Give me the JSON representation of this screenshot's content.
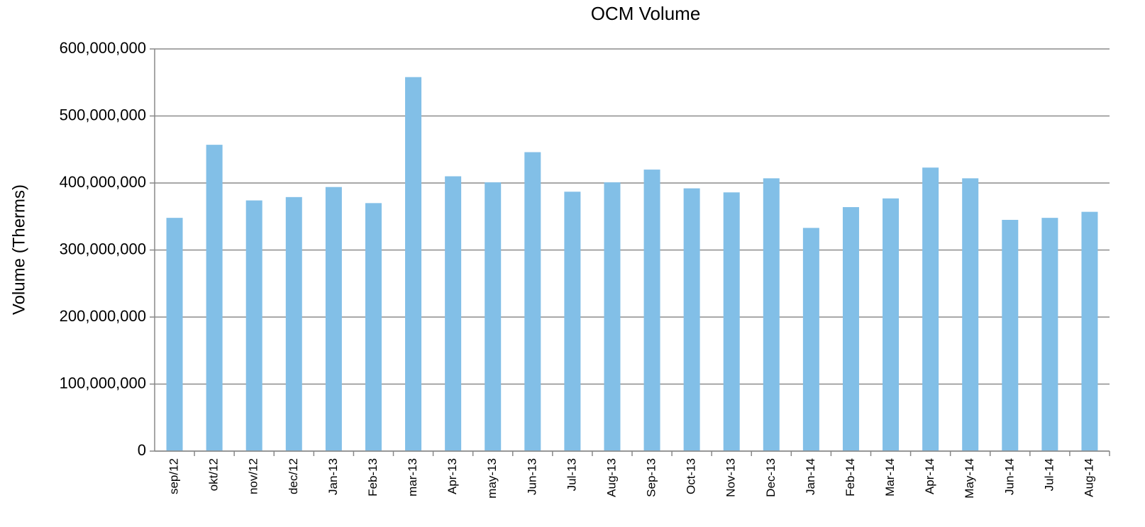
{
  "chart_data": {
    "type": "bar",
    "title": "OCM Volume",
    "y_label": "Volume (Therms)",
    "categories": [
      "sep/12",
      "okt/12",
      "nov/12",
      "dec/12",
      "Jan-13",
      "Feb-13",
      "mar-13",
      "Apr-13",
      "may-13",
      "Jun-13",
      "Jul-13",
      "Aug-13",
      "Sep-13",
      "Oct-13",
      "Nov-13",
      "Dec-13",
      "Jan-14",
      "Feb-14",
      "Mar-14",
      "Apr-14",
      "May-14",
      "Jun-14",
      "Jul-14",
      "Aug-14"
    ],
    "values": [
      348000000,
      457000000,
      374000000,
      379000000,
      394000000,
      370000000,
      558000000,
      410000000,
      401000000,
      446000000,
      387000000,
      401000000,
      420000000,
      392000000,
      386000000,
      407000000,
      333000000,
      364000000,
      377000000,
      423000000,
      407000000,
      345000000,
      348000000,
      357000000
    ],
    "color": "#82bfe7",
    "ylim": [
      0,
      600000000
    ],
    "yticks": [
      0,
      {
        "value": 100000000,
        "label": "100,000,000"
      },
      {
        "value": 200000000,
        "label": "200,000,000"
      },
      {
        "value": 300000000,
        "label": "300,000,000"
      },
      {
        "value": 400000000,
        "label": "400,000,000"
      },
      {
        "value": 500000000,
        "label": "500,000,000"
      },
      {
        "value": 600000000,
        "label": "600,000,000"
      }
    ],
    "grid": true
  }
}
